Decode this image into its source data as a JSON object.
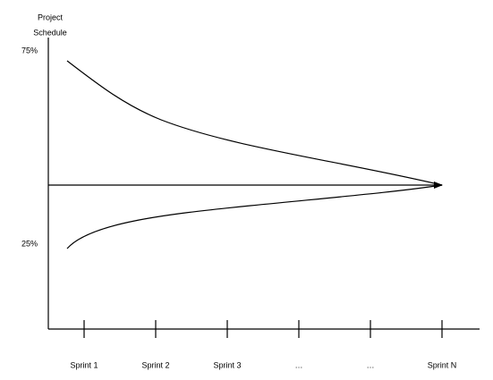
{
  "y_axis": {
    "title_lines": [
      "Project",
      "Schedule"
    ],
    "labels": [
      "75%",
      "25%"
    ]
  },
  "x_axis": {
    "labels": [
      "Sprint 1",
      "Sprint 2",
      "Sprint 3",
      "…",
      "…",
      "Sprint N"
    ]
  }
}
